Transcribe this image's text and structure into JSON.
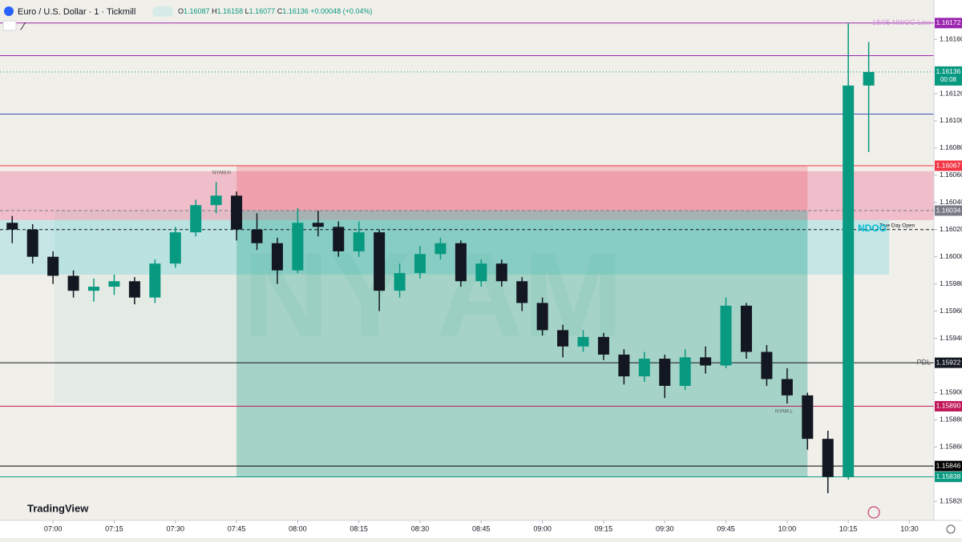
{
  "chart_data": {
    "type": "candlestick",
    "title": "Euro / U.S. Dollar · 1 · Tickmill",
    "ohlc_prefixes": [
      "O",
      "H",
      "L",
      "C"
    ],
    "header_values": [
      1.16087,
      1.16158,
      1.16077,
      1.16136
    ],
    "change": "+0.00048 (+0.04%)",
    "branding": "TradingView",
    "watermark": "NY AM",
    "annotations": {
      "nyam_high": "NYAM.H",
      "nyam_low": "NYAM.L",
      "ndog": "NDOG"
    },
    "up_color": "#089981",
    "down_color": "#131722",
    "xlim": [
      "06:47",
      "10:36"
    ],
    "xticks": [
      "07:00",
      "07:15",
      "07:30",
      "07:45",
      "08:00",
      "08:15",
      "08:30",
      "08:45",
      "09:00",
      "09:15",
      "09:30",
      "09:45",
      "10:00",
      "10:15",
      "10:30"
    ],
    "ylim": [
      1.15806,
      1.16176
    ],
    "yticks": [
      {
        "value": 1.1616,
        "label": "1.16160"
      },
      {
        "value": 1.1612,
        "label": "1.16120"
      },
      {
        "value": 1.161,
        "label": "1.16100"
      },
      {
        "value": 1.1608,
        "label": "1.16080"
      },
      {
        "value": 1.1606,
        "label": "1.16060"
      },
      {
        "value": 1.1604,
        "label": "1.16040"
      },
      {
        "value": 1.1602,
        "label": "1.16020"
      },
      {
        "value": 1.16,
        "label": "1.16000"
      },
      {
        "value": 1.1598,
        "label": "1.15980"
      },
      {
        "value": 1.1596,
        "label": "1.15960"
      },
      {
        "value": 1.1594,
        "label": "1.15940"
      },
      {
        "value": 1.159,
        "label": "1.15900"
      },
      {
        "value": 1.1588,
        "label": "1.15880"
      },
      {
        "value": 1.1586,
        "label": "1.15860"
      },
      {
        "value": 1.1582,
        "label": "1.15820"
      }
    ],
    "x": [
      "06:50",
      "06:55",
      "07:00",
      "07:05",
      "07:10",
      "07:15",
      "07:20",
      "07:25",
      "07:30",
      "07:35",
      "07:40",
      "07:45",
      "07:50",
      "07:55",
      "08:00",
      "08:05",
      "08:10",
      "08:15",
      "08:20",
      "08:25",
      "08:30",
      "08:35",
      "08:40",
      "08:45",
      "08:50",
      "08:55",
      "09:00",
      "09:05",
      "09:10",
      "09:15",
      "09:20",
      "09:25",
      "09:30",
      "09:35",
      "09:40",
      "09:45",
      "09:50",
      "09:55",
      "10:00",
      "10:05",
      "10:10",
      "10:15",
      "10:20"
    ],
    "open": [
      1.16025,
      1.1602,
      1.16,
      1.15986,
      1.15975,
      1.15978,
      1.15982,
      1.1597,
      1.15995,
      1.16018,
      1.16038,
      1.16045,
      1.1602,
      1.1601,
      1.1599,
      1.16025,
      1.16022,
      1.16004,
      1.16018,
      1.15975,
      1.15988,
      1.16002,
      1.1601,
      1.15982,
      1.15995,
      1.15982,
      1.15966,
      1.15946,
      1.15934,
      1.15941,
      1.15928,
      1.15912,
      1.15925,
      1.15905,
      1.15926,
      1.1592,
      1.15964,
      1.1593,
      1.1591,
      1.15898,
      1.15866,
      1.15838,
      1.16126
    ],
    "high": [
      1.1603,
      1.16024,
      1.16004,
      1.1599,
      1.15984,
      1.15987,
      1.15985,
      1.15998,
      1.16022,
      1.16042,
      1.16055,
      1.16048,
      1.16032,
      1.16014,
      1.16036,
      1.16034,
      1.16026,
      1.16026,
      1.1602,
      1.15995,
      1.16008,
      1.16014,
      1.16012,
      1.15998,
      1.15998,
      1.15985,
      1.1597,
      1.1595,
      1.15946,
      1.15944,
      1.15932,
      1.1593,
      1.15928,
      1.15932,
      1.15934,
      1.1597,
      1.15966,
      1.15935,
      1.15918,
      1.159,
      1.15872,
      1.16172,
      1.16158
    ],
    "low": [
      1.1601,
      1.15995,
      1.1598,
      1.1597,
      1.15967,
      1.15972,
      1.15965,
      1.15966,
      1.15992,
      1.16015,
      1.16032,
      1.16012,
      1.16005,
      1.1598,
      1.15988,
      1.16015,
      1.16,
      1.16,
      1.1596,
      1.1597,
      1.15984,
      1.15998,
      1.15978,
      1.15978,
      1.15978,
      1.1596,
      1.15942,
      1.15926,
      1.1593,
      1.15924,
      1.15906,
      1.15908,
      1.15896,
      1.15902,
      1.15914,
      1.15918,
      1.15925,
      1.15905,
      1.15892,
      1.15858,
      1.15826,
      1.15836,
      1.16077
    ],
    "close": [
      1.1602,
      1.16,
      1.15986,
      1.15975,
      1.15978,
      1.15982,
      1.1597,
      1.15995,
      1.16018,
      1.16038,
      1.16045,
      1.1602,
      1.1601,
      1.1599,
      1.16025,
      1.16022,
      1.16004,
      1.16018,
      1.15975,
      1.15988,
      1.16002,
      1.1601,
      1.15982,
      1.15995,
      1.15982,
      1.15966,
      1.15946,
      1.15934,
      1.15941,
      1.15928,
      1.15912,
      1.15925,
      1.15905,
      1.15926,
      1.1592,
      1.15964,
      1.1593,
      1.1591,
      1.15898,
      1.15866,
      1.15838,
      1.16126,
      1.16136
    ],
    "levels": [
      {
        "value": 1.16172,
        "label": "1.16172",
        "color": "#9c27b0",
        "text": "18/05 NWOG Low"
      },
      {
        "value": 1.16148,
        "color": "#9c27b0"
      },
      {
        "value": 1.16105,
        "color": "#3f51b5"
      },
      {
        "value": 1.16067,
        "label": "1.16067",
        "color": "#f23645"
      },
      {
        "value": 1.16034,
        "label": "1.16034",
        "color": "#787b86",
        "dashed": true
      },
      {
        "value": 1.1602,
        "color": "#131722",
        "dashed": true,
        "text": "True Day Open"
      },
      {
        "value": 1.15922,
        "label": "1.15922",
        "color": "#131722",
        "text": "PDL"
      },
      {
        "value": 1.1589,
        "label": "1.15890",
        "color": "#c2185b"
      },
      {
        "value": 1.15846,
        "label": "1.15846",
        "color": "#000000"
      },
      {
        "value": 1.15838,
        "label": "1.15838",
        "color": "#089981"
      }
    ],
    "current": {
      "value": 1.16136,
      "countdown": "00:08",
      "color": "#089981"
    },
    "zones": [
      {
        "x": [
          "06:47",
          "10:36"
        ],
        "y": [
          1.16027,
          1.16063
        ],
        "color": "rgba(236,64,122,0.28)"
      },
      {
        "x": [
          "06:47",
          "10:25"
        ],
        "y": [
          1.15987,
          1.16027
        ],
        "color": "rgba(0,188,212,0.18)"
      }
    ],
    "position": {
      "x": [
        "07:45",
        "10:05"
      ],
      "stop": 1.16067,
      "entry": 1.16034,
      "target": 1.15838
    }
  }
}
